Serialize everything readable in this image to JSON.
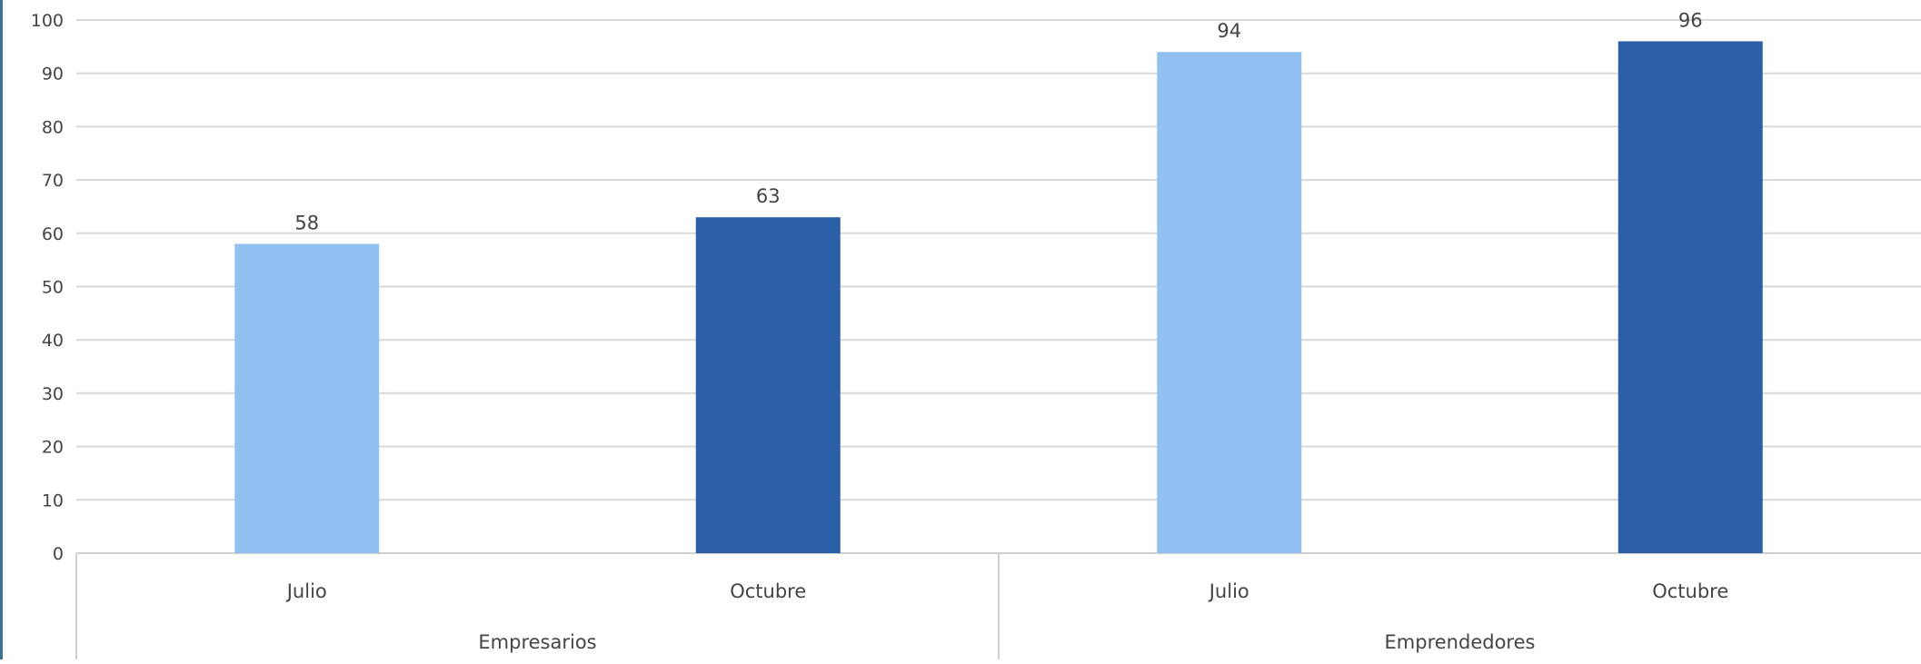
{
  "chart_data": {
    "type": "bar",
    "title": "",
    "xlabel": "",
    "ylabel": "",
    "ylim": [
      0,
      100
    ],
    "y_ticks": [
      "0",
      "10",
      "20",
      "30",
      "40",
      "50",
      "60",
      "70",
      "80",
      "90",
      "100"
    ],
    "grid": true,
    "legend": "none",
    "groups": [
      {
        "label": "Empresarios",
        "bars": [
          {
            "category": "Julio",
            "value": 58,
            "data_label": "58",
            "color": "#92C1F1"
          },
          {
            "category": "Octubre",
            "value": 63,
            "data_label": "63",
            "color": "#2B5FA8"
          }
        ]
      },
      {
        "label": "Emprendedores",
        "bars": [
          {
            "category": "Julio",
            "value": 94,
            "data_label": "94",
            "color": "#92C1F1"
          },
          {
            "category": "Octubre",
            "value": 96,
            "data_label": "96",
            "color": "#2B5FA8"
          }
        ]
      }
    ]
  }
}
